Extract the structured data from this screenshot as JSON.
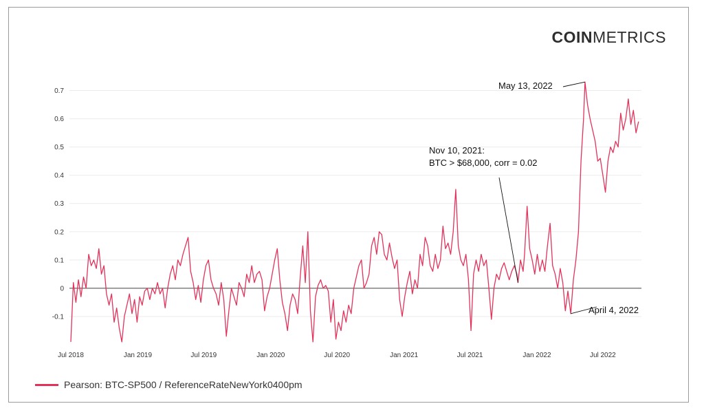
{
  "brand": {
    "name_bold": "COIN",
    "name_regular": "METRICS"
  },
  "legend": {
    "label": "Pearson: BTC-SP500 / ReferenceRateNewYork0400pm"
  },
  "colors": {
    "series": "#e2325a",
    "grid": "#ebebeb",
    "zero": "#666666",
    "text": "#333333"
  },
  "chart_data": {
    "type": "line",
    "title": "",
    "xlabel": "",
    "ylabel": "",
    "ylim": [
      -0.2,
      0.75
    ],
    "y_ticks": [
      -0.1,
      0,
      0.1,
      0.2,
      0.3,
      0.4,
      0.5,
      0.6,
      0.7
    ],
    "y_tick_labels": [
      "-0.1",
      "0",
      "0.1",
      "0.2",
      "0.3",
      "0.4",
      "0.5",
      "0.6",
      "0.7"
    ],
    "x_range": [
      "2018-07-01",
      "2022-10-15"
    ],
    "x_ticks": [
      "2018-07-01",
      "2019-01-01",
      "2019-07-01",
      "2020-01-01",
      "2020-07-01",
      "2021-01-01",
      "2021-07-01",
      "2022-01-01",
      "2022-07-01"
    ],
    "x_tick_labels": [
      "Jul 2018",
      "Jan 2019",
      "Jul 2019",
      "Jan 2020",
      "Jul 2020",
      "Jan 2021",
      "Jul 2021",
      "Jan 2022",
      "Jul 2022"
    ],
    "grid": true,
    "legend_position": "bottom-left",
    "series": [
      {
        "name": "Pearson: BTC-SP500 / ReferenceRateNewYork0400pm",
        "color": "#e2325a",
        "points": [
          [
            "2018-07-01",
            -0.19
          ],
          [
            "2018-07-08",
            0.02
          ],
          [
            "2018-07-15",
            -0.05
          ],
          [
            "2018-07-22",
            0.03
          ],
          [
            "2018-07-29",
            -0.03
          ],
          [
            "2018-08-05",
            0.04
          ],
          [
            "2018-08-12",
            0.0
          ],
          [
            "2018-08-19",
            0.12
          ],
          [
            "2018-08-26",
            0.08
          ],
          [
            "2018-09-02",
            0.1
          ],
          [
            "2018-09-09",
            0.07
          ],
          [
            "2018-09-16",
            0.14
          ],
          [
            "2018-09-23",
            0.05
          ],
          [
            "2018-09-30",
            0.08
          ],
          [
            "2018-10-07",
            -0.02
          ],
          [
            "2018-10-14",
            -0.06
          ],
          [
            "2018-10-21",
            -0.02
          ],
          [
            "2018-10-28",
            -0.12
          ],
          [
            "2018-11-04",
            -0.07
          ],
          [
            "2018-11-11",
            -0.14
          ],
          [
            "2018-11-18",
            -0.19
          ],
          [
            "2018-11-25",
            -0.1
          ],
          [
            "2018-12-02",
            -0.06
          ],
          [
            "2018-12-09",
            -0.02
          ],
          [
            "2018-12-16",
            -0.09
          ],
          [
            "2018-12-23",
            -0.04
          ],
          [
            "2018-12-30",
            -0.12
          ],
          [
            "2019-01-06",
            -0.03
          ],
          [
            "2019-01-13",
            -0.06
          ],
          [
            "2019-01-20",
            -0.01
          ],
          [
            "2019-01-27",
            0.0
          ],
          [
            "2019-02-03",
            -0.04
          ],
          [
            "2019-02-10",
            0.0
          ],
          [
            "2019-02-17",
            -0.02
          ],
          [
            "2019-02-24",
            0.02
          ],
          [
            "2019-03-03",
            -0.02
          ],
          [
            "2019-03-10",
            0.0
          ],
          [
            "2019-03-17",
            -0.07
          ],
          [
            "2019-03-24",
            0.0
          ],
          [
            "2019-03-31",
            0.05
          ],
          [
            "2019-04-07",
            0.08
          ],
          [
            "2019-04-14",
            0.03
          ],
          [
            "2019-04-21",
            0.1
          ],
          [
            "2019-04-28",
            0.08
          ],
          [
            "2019-05-05",
            0.12
          ],
          [
            "2019-05-12",
            0.15
          ],
          [
            "2019-05-19",
            0.18
          ],
          [
            "2019-05-26",
            0.06
          ],
          [
            "2019-06-02",
            0.02
          ],
          [
            "2019-06-09",
            -0.04
          ],
          [
            "2019-06-16",
            0.01
          ],
          [
            "2019-06-23",
            -0.05
          ],
          [
            "2019-06-30",
            0.03
          ],
          [
            "2019-07-07",
            0.08
          ],
          [
            "2019-07-14",
            0.1
          ],
          [
            "2019-07-21",
            0.03
          ],
          [
            "2019-07-28",
            0.0
          ],
          [
            "2019-08-04",
            -0.02
          ],
          [
            "2019-08-11",
            -0.06
          ],
          [
            "2019-08-18",
            0.02
          ],
          [
            "2019-08-25",
            -0.04
          ],
          [
            "2019-09-01",
            -0.17
          ],
          [
            "2019-09-08",
            -0.08
          ],
          [
            "2019-09-15",
            0.0
          ],
          [
            "2019-09-22",
            -0.03
          ],
          [
            "2019-09-29",
            -0.06
          ],
          [
            "2019-10-06",
            0.02
          ],
          [
            "2019-10-13",
            0.0
          ],
          [
            "2019-10-20",
            -0.03
          ],
          [
            "2019-10-27",
            0.05
          ],
          [
            "2019-11-03",
            0.02
          ],
          [
            "2019-11-10",
            0.08
          ],
          [
            "2019-11-17",
            0.02
          ],
          [
            "2019-11-24",
            0.05
          ],
          [
            "2019-12-01",
            0.06
          ],
          [
            "2019-12-08",
            0.03
          ],
          [
            "2019-12-15",
            -0.08
          ],
          [
            "2019-12-22",
            -0.03
          ],
          [
            "2019-12-29",
            0.0
          ],
          [
            "2020-01-05",
            0.05
          ],
          [
            "2020-01-12",
            0.1
          ],
          [
            "2020-01-19",
            0.14
          ],
          [
            "2020-01-26",
            0.03
          ],
          [
            "2020-02-02",
            -0.05
          ],
          [
            "2020-02-09",
            -0.09
          ],
          [
            "2020-02-16",
            -0.15
          ],
          [
            "2020-02-23",
            -0.06
          ],
          [
            "2020-03-01",
            -0.02
          ],
          [
            "2020-03-08",
            -0.04
          ],
          [
            "2020-03-15",
            -0.09
          ],
          [
            "2020-03-22",
            0.04
          ],
          [
            "2020-03-29",
            0.15
          ],
          [
            "2020-04-05",
            0.02
          ],
          [
            "2020-04-12",
            0.2
          ],
          [
            "2020-04-19",
            -0.08
          ],
          [
            "2020-04-26",
            -0.19
          ],
          [
            "2020-05-03",
            -0.03
          ],
          [
            "2020-05-10",
            0.01
          ],
          [
            "2020-05-17",
            0.03
          ],
          [
            "2020-05-24",
            0.0
          ],
          [
            "2020-05-31",
            0.01
          ],
          [
            "2020-06-07",
            -0.01
          ],
          [
            "2020-06-14",
            -0.12
          ],
          [
            "2020-06-21",
            -0.04
          ],
          [
            "2020-06-28",
            -0.18
          ],
          [
            "2020-07-05",
            -0.12
          ],
          [
            "2020-07-12",
            -0.15
          ],
          [
            "2020-07-19",
            -0.08
          ],
          [
            "2020-07-26",
            -0.12
          ],
          [
            "2020-08-02",
            -0.06
          ],
          [
            "2020-08-09",
            -0.09
          ],
          [
            "2020-08-16",
            0.0
          ],
          [
            "2020-08-23",
            0.04
          ],
          [
            "2020-08-30",
            0.08
          ],
          [
            "2020-09-06",
            0.1
          ],
          [
            "2020-09-13",
            0.0
          ],
          [
            "2020-09-20",
            0.02
          ],
          [
            "2020-09-27",
            0.05
          ],
          [
            "2020-10-04",
            0.15
          ],
          [
            "2020-10-11",
            0.18
          ],
          [
            "2020-10-18",
            0.12
          ],
          [
            "2020-10-25",
            0.2
          ],
          [
            "2020-11-01",
            0.19
          ],
          [
            "2020-11-08",
            0.12
          ],
          [
            "2020-11-15",
            0.1
          ],
          [
            "2020-11-22",
            0.16
          ],
          [
            "2020-11-29",
            0.11
          ],
          [
            "2020-12-06",
            0.07
          ],
          [
            "2020-12-13",
            0.1
          ],
          [
            "2020-12-20",
            -0.04
          ],
          [
            "2020-12-27",
            -0.1
          ],
          [
            "2021-01-03",
            -0.03
          ],
          [
            "2021-01-10",
            0.02
          ],
          [
            "2021-01-17",
            0.06
          ],
          [
            "2021-01-24",
            -0.02
          ],
          [
            "2021-01-31",
            0.03
          ],
          [
            "2021-02-07",
            0.0
          ],
          [
            "2021-02-14",
            0.12
          ],
          [
            "2021-02-21",
            0.08
          ],
          [
            "2021-02-28",
            0.18
          ],
          [
            "2021-03-07",
            0.15
          ],
          [
            "2021-03-14",
            0.08
          ],
          [
            "2021-03-21",
            0.06
          ],
          [
            "2021-03-28",
            0.12
          ],
          [
            "2021-04-04",
            0.07
          ],
          [
            "2021-04-11",
            0.1
          ],
          [
            "2021-04-18",
            0.22
          ],
          [
            "2021-04-25",
            0.14
          ],
          [
            "2021-05-02",
            0.16
          ],
          [
            "2021-05-09",
            0.12
          ],
          [
            "2021-05-16",
            0.2
          ],
          [
            "2021-05-23",
            0.35
          ],
          [
            "2021-05-30",
            0.15
          ],
          [
            "2021-06-06",
            0.1
          ],
          [
            "2021-06-13",
            0.08
          ],
          [
            "2021-06-20",
            0.12
          ],
          [
            "2021-06-27",
            0.03
          ],
          [
            "2021-07-04",
            -0.15
          ],
          [
            "2021-07-11",
            0.05
          ],
          [
            "2021-07-18",
            0.1
          ],
          [
            "2021-07-25",
            0.06
          ],
          [
            "2021-08-01",
            0.12
          ],
          [
            "2021-08-08",
            0.08
          ],
          [
            "2021-08-15",
            0.1
          ],
          [
            "2021-08-22",
            0.0
          ],
          [
            "2021-08-29",
            -0.11
          ],
          [
            "2021-09-05",
            0.0
          ],
          [
            "2021-09-12",
            0.05
          ],
          [
            "2021-09-19",
            0.03
          ],
          [
            "2021-09-26",
            0.07
          ],
          [
            "2021-10-03",
            0.09
          ],
          [
            "2021-10-10",
            0.06
          ],
          [
            "2021-10-17",
            0.03
          ],
          [
            "2021-10-24",
            0.06
          ],
          [
            "2021-10-31",
            0.08
          ],
          [
            "2021-11-07",
            0.05
          ],
          [
            "2021-11-10",
            0.02
          ],
          [
            "2021-11-17",
            0.1
          ],
          [
            "2021-11-24",
            0.06
          ],
          [
            "2021-11-28",
            0.12
          ],
          [
            "2021-12-05",
            0.29
          ],
          [
            "2021-12-12",
            0.14
          ],
          [
            "2021-12-19",
            0.1
          ],
          [
            "2021-12-26",
            0.05
          ],
          [
            "2022-01-02",
            0.12
          ],
          [
            "2022-01-09",
            0.06
          ],
          [
            "2022-01-16",
            0.1
          ],
          [
            "2022-01-23",
            0.06
          ],
          [
            "2022-01-30",
            0.15
          ],
          [
            "2022-02-06",
            0.23
          ],
          [
            "2022-02-13",
            0.08
          ],
          [
            "2022-02-20",
            0.05
          ],
          [
            "2022-02-27",
            0.0
          ],
          [
            "2022-03-06",
            0.07
          ],
          [
            "2022-03-13",
            0.02
          ],
          [
            "2022-03-20",
            -0.08
          ],
          [
            "2022-03-27",
            -0.01
          ],
          [
            "2022-04-04",
            -0.09
          ],
          [
            "2022-04-11",
            0.03
          ],
          [
            "2022-04-18",
            0.1
          ],
          [
            "2022-04-25",
            0.2
          ],
          [
            "2022-05-02",
            0.45
          ],
          [
            "2022-05-09",
            0.6
          ],
          [
            "2022-05-13",
            0.73
          ],
          [
            "2022-05-20",
            0.65
          ],
          [
            "2022-05-27",
            0.6
          ],
          [
            "2022-06-03",
            0.56
          ],
          [
            "2022-06-10",
            0.52
          ],
          [
            "2022-06-17",
            0.45
          ],
          [
            "2022-06-24",
            0.46
          ],
          [
            "2022-07-01",
            0.4
          ],
          [
            "2022-07-08",
            0.34
          ],
          [
            "2022-07-15",
            0.45
          ],
          [
            "2022-07-22",
            0.5
          ],
          [
            "2022-07-29",
            0.48
          ],
          [
            "2022-08-05",
            0.52
          ],
          [
            "2022-08-12",
            0.5
          ],
          [
            "2022-08-19",
            0.62
          ],
          [
            "2022-08-26",
            0.56
          ],
          [
            "2022-09-02",
            0.6
          ],
          [
            "2022-09-09",
            0.67
          ],
          [
            "2022-09-16",
            0.58
          ],
          [
            "2022-09-23",
            0.63
          ],
          [
            "2022-09-30",
            0.55
          ],
          [
            "2022-10-07",
            0.59
          ]
        ]
      }
    ],
    "annotations": [
      {
        "date": "2022-05-13",
        "value": 0.73,
        "lines": [
          "May 13, 2022"
        ]
      },
      {
        "date": "2021-11-10",
        "value": 0.02,
        "lines": [
          "Nov 10, 2021:",
          "BTC > $68,000, corr = 0.02"
        ]
      },
      {
        "date": "2022-04-04",
        "value": -0.09,
        "lines": [
          "April 4, 2022"
        ]
      }
    ]
  }
}
